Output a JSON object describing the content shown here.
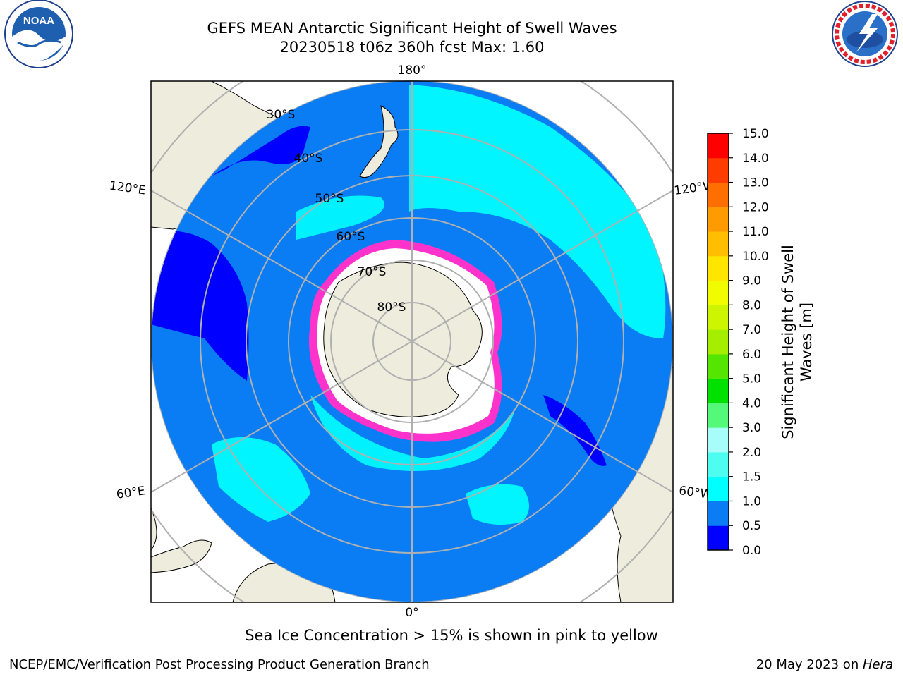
{
  "title": {
    "line1": "GEFS MEAN Antarctic Significant Height of Swell Waves",
    "line2": "20230518 t06z 360h fcst   Max: 1.60"
  },
  "map": {
    "projection": "south-polar-stereographic",
    "lon_labels": {
      "top": "180°",
      "bottom": "0°",
      "left_top": "120°E",
      "left_bottom": "60°E",
      "right_top": "120°W",
      "right_bottom": "60°W"
    },
    "lat_labels": [
      "30°S",
      "40°S",
      "50°S",
      "60°S",
      "70°S",
      "80°S"
    ],
    "colors": {
      "land": "#eeecdc",
      "ocean_base": "#0a7df5",
      "low": "#0000ff",
      "mid": "#00ffff",
      "ice": "#ffffff",
      "ice_edge": "#ff33cc",
      "grid": "#b0b0b0"
    }
  },
  "colorbar": {
    "title_line1": "Significant Height of Swell",
    "title_line2": "Waves [m]",
    "ticks": [
      "0.0",
      "0.5",
      "1.0",
      "1.5",
      "2.0",
      "3.0",
      "4.0",
      "5.0",
      "6.0",
      "7.0",
      "8.0",
      "9.0",
      "10.0",
      "11.0",
      "12.0",
      "13.0",
      "14.0",
      "15.0"
    ],
    "colors": [
      "#0000ff",
      "#0a7df5",
      "#00ffff",
      "#4cfdf0",
      "#a6fdfa",
      "#55f97a",
      "#00e100",
      "#55e600",
      "#a6ee00",
      "#cdf400",
      "#f2fc00",
      "#ffe600",
      "#ffbe00",
      "#ff9b00",
      "#ff6e00",
      "#ff3c00",
      "#ff0000"
    ]
  },
  "note": "Sea Ice Concentration > 15% is shown in pink to yellow",
  "footer": {
    "left": "NCEP/EMC/Verification Post Processing Product Generation Branch",
    "right_prefix": "20 May 2023 on ",
    "right_host": "Hera"
  },
  "logos": {
    "left": "NOAA",
    "right": "NATIONAL WEATHER SERVICE"
  }
}
